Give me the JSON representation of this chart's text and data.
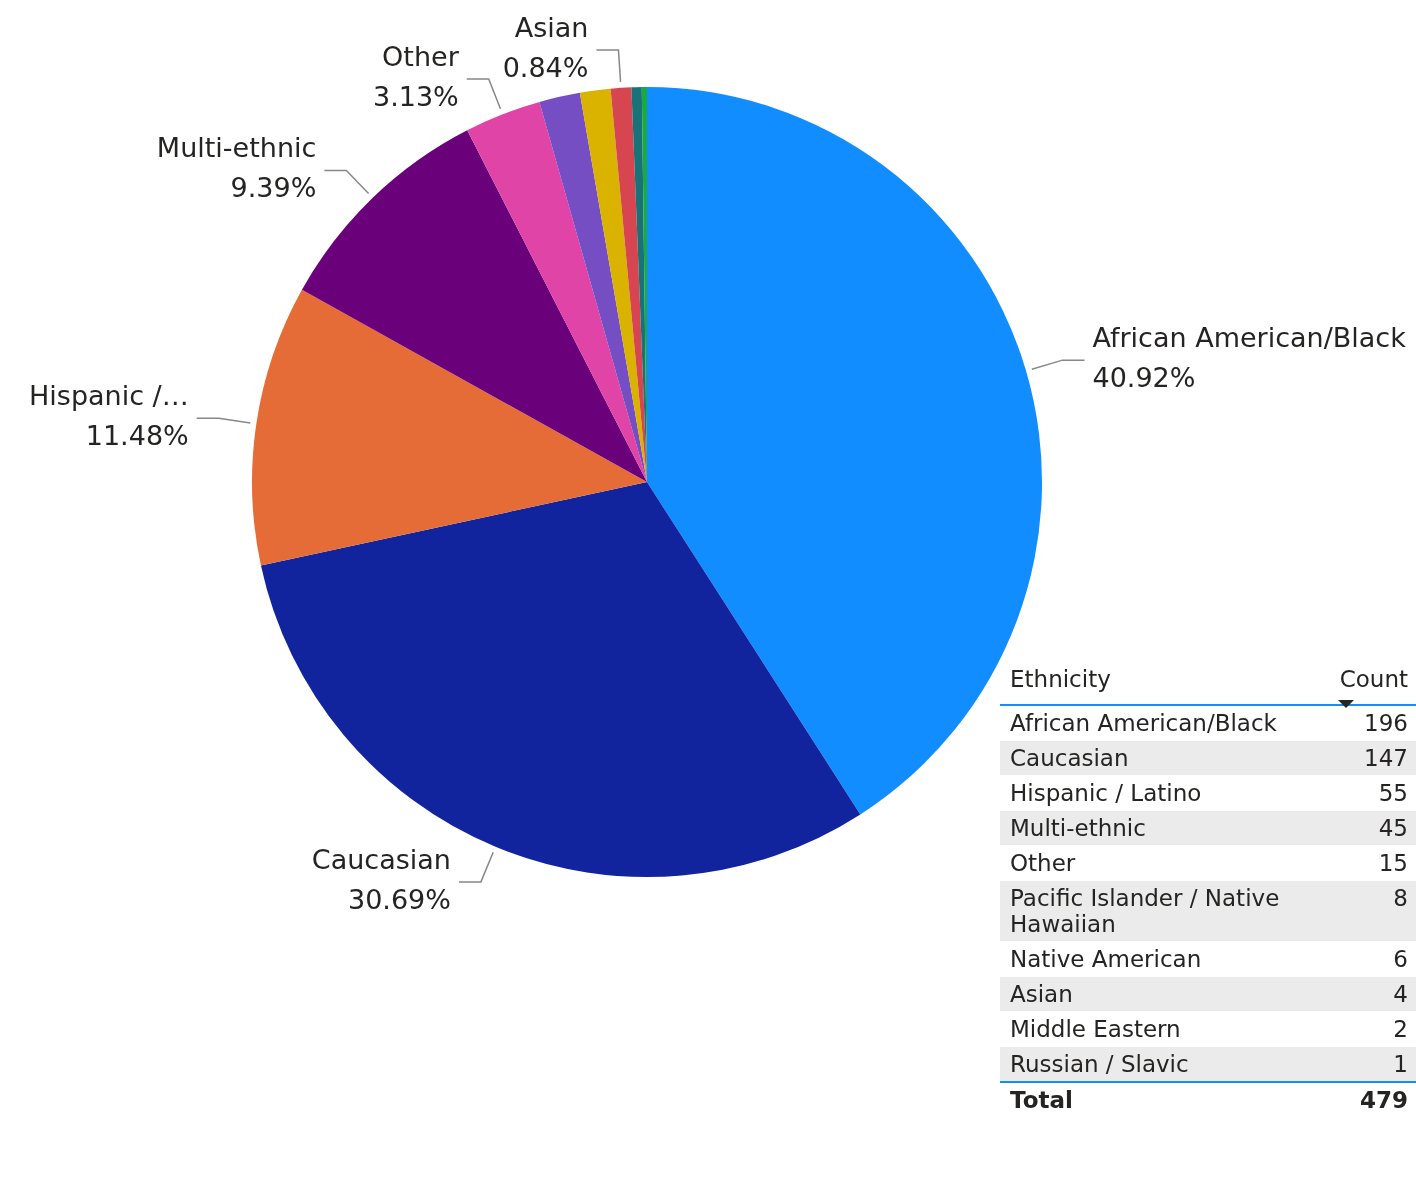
{
  "chart_data": [
    {
      "type": "pie",
      "categories": [
        "African American/Black",
        "Caucasian",
        "Hispanic /…",
        "Multi-ethnic",
        "Other",
        null,
        null,
        "Asian",
        null,
        null
      ],
      "values": [
        40.92,
        30.69,
        11.48,
        9.39,
        3.13,
        1.67,
        1.25,
        0.84,
        0.42,
        0.21
      ],
      "colors": [
        "#118dff",
        "#12239e",
        "#e66c37",
        "#6b007b",
        "#e044a7",
        "#744ec2",
        "#d9b300",
        "#d64550",
        "#197278",
        "#1aab40"
      ],
      "value_labels": [
        "40.92%",
        "30.69%",
        "11.48%",
        "9.39%",
        "3.13%",
        null,
        null,
        "0.84%",
        null,
        null
      ],
      "legend": false
    },
    {
      "type": "other",
      "categories": [
        "African American/Black",
        "Caucasian",
        "Hispanic / Latino",
        "Multi-ethnic",
        "Other",
        "Pacific Islander / Native Hawaiian",
        "Native American",
        "Asian",
        "Middle Eastern",
        "Russian / Slavic"
      ],
      "values": [
        196,
        147,
        55,
        45,
        15,
        8,
        6,
        4,
        2,
        1
      ],
      "data_labels": true,
      "annotations": [
        "Ethnicity",
        "Count",
        "Total",
        "479"
      ]
    }
  ]
}
